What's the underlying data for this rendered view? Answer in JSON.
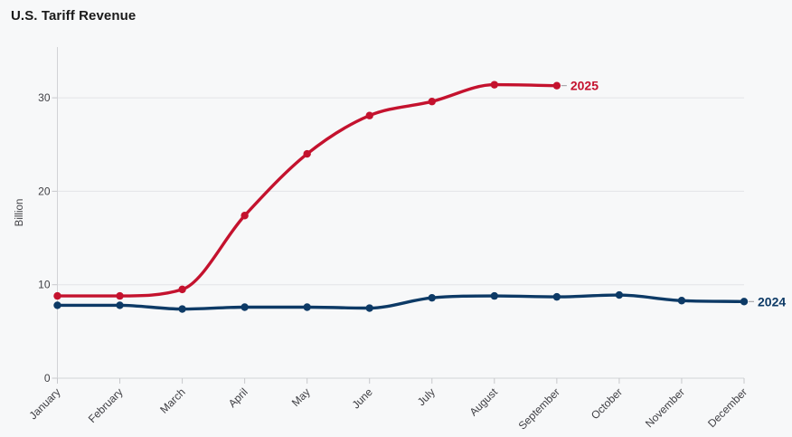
{
  "page": {
    "background_color": "#f7f8f9"
  },
  "chart_data": {
    "type": "line",
    "title": "U.S. Tariff Revenue",
    "ylabel": "Billion",
    "xlabel": "",
    "categories": [
      "January",
      "February",
      "March",
      "April",
      "May",
      "June",
      "July",
      "August",
      "September",
      "October",
      "November",
      "December"
    ],
    "series": [
      {
        "name": "2025",
        "color": "#c4122e",
        "values": [
          8.8,
          8.8,
          9.5,
          17.4,
          24.0,
          28.1,
          29.6,
          31.4,
          31.3
        ]
      },
      {
        "name": "2024",
        "color": "#0d3a66",
        "values": [
          7.8,
          7.8,
          7.4,
          7.6,
          7.6,
          7.5,
          8.6,
          8.8,
          8.7,
          8.9,
          8.3,
          8.2
        ]
      }
    ],
    "yticks": [
      0,
      10,
      20,
      30
    ],
    "ylim": [
      0,
      35.4
    ],
    "grid": true,
    "legend_position": "end-of-line",
    "curve": "smooth-monotone"
  },
  "style": {
    "grid_color": "#e3e4e7",
    "axis_line_color": "#d2d3d6",
    "tick_color": "#c7c8cc",
    "tick_label_color": "#404045",
    "title_color": "#1a1a1a",
    "label_connector_color": "#9a9a9e"
  }
}
